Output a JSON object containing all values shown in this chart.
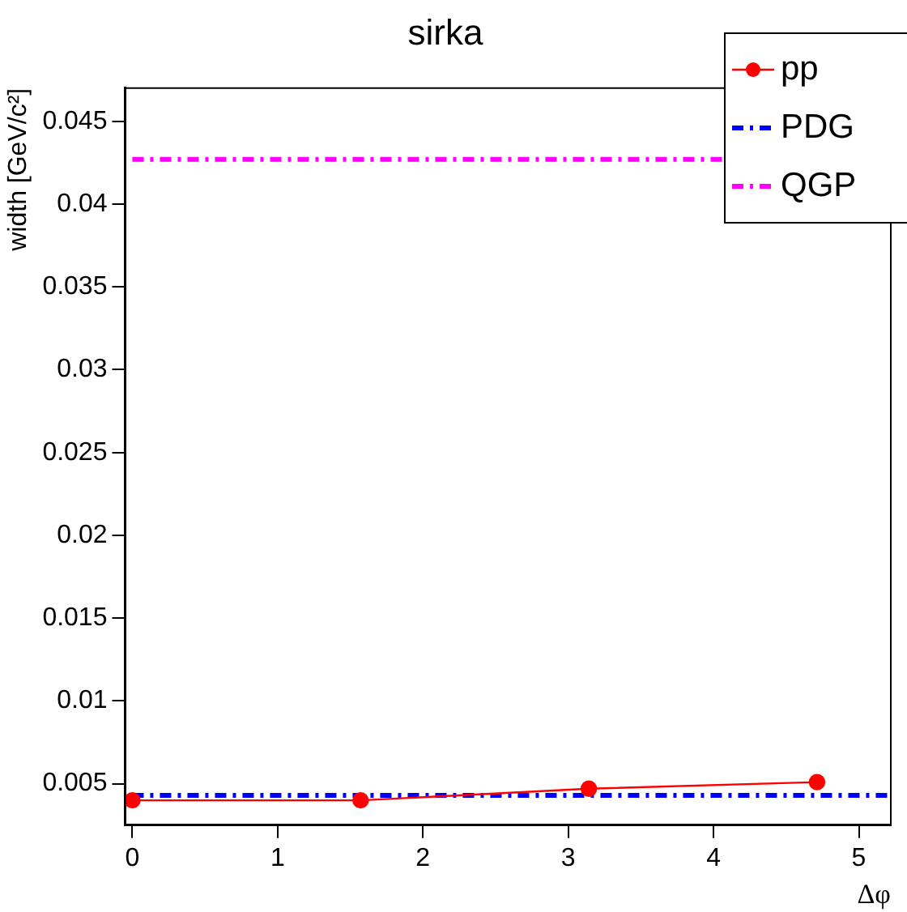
{
  "chart_data": {
    "type": "line",
    "title": "sirka",
    "xlabel": "Δφ",
    "ylabel": "width [GeV/c²]",
    "xlim": [
      -0.05,
      5.22
    ],
    "xticks": [
      0,
      1,
      2,
      3,
      4,
      5
    ],
    "ylim": [
      0.0025,
      0.047
    ],
    "yticks": [
      0.005,
      0.01,
      0.015,
      0.02,
      0.025,
      0.03,
      0.035,
      0.04,
      0.045
    ],
    "grid": false,
    "legend": "top right",
    "series": [
      {
        "name": "pp",
        "color": "#ff0000",
        "x": [
          0,
          1.5708,
          3.1416,
          4.7124
        ],
        "values": [
          0.004,
          0.004,
          0.0047,
          0.0051
        ],
        "marker": "circle",
        "line_style": "solid"
      },
      {
        "name": "PDG",
        "color": "#0000ff",
        "x": [
          0,
          5.2
        ],
        "values": [
          0.0043,
          0.0043
        ],
        "marker": "none",
        "line_style": "dashed"
      },
      {
        "name": "QGP",
        "color": "#ff00ff",
        "x": [
          0,
          4.1
        ],
        "values": [
          0.0427,
          0.0427
        ],
        "marker": "none",
        "line_style": "dashed"
      }
    ]
  }
}
